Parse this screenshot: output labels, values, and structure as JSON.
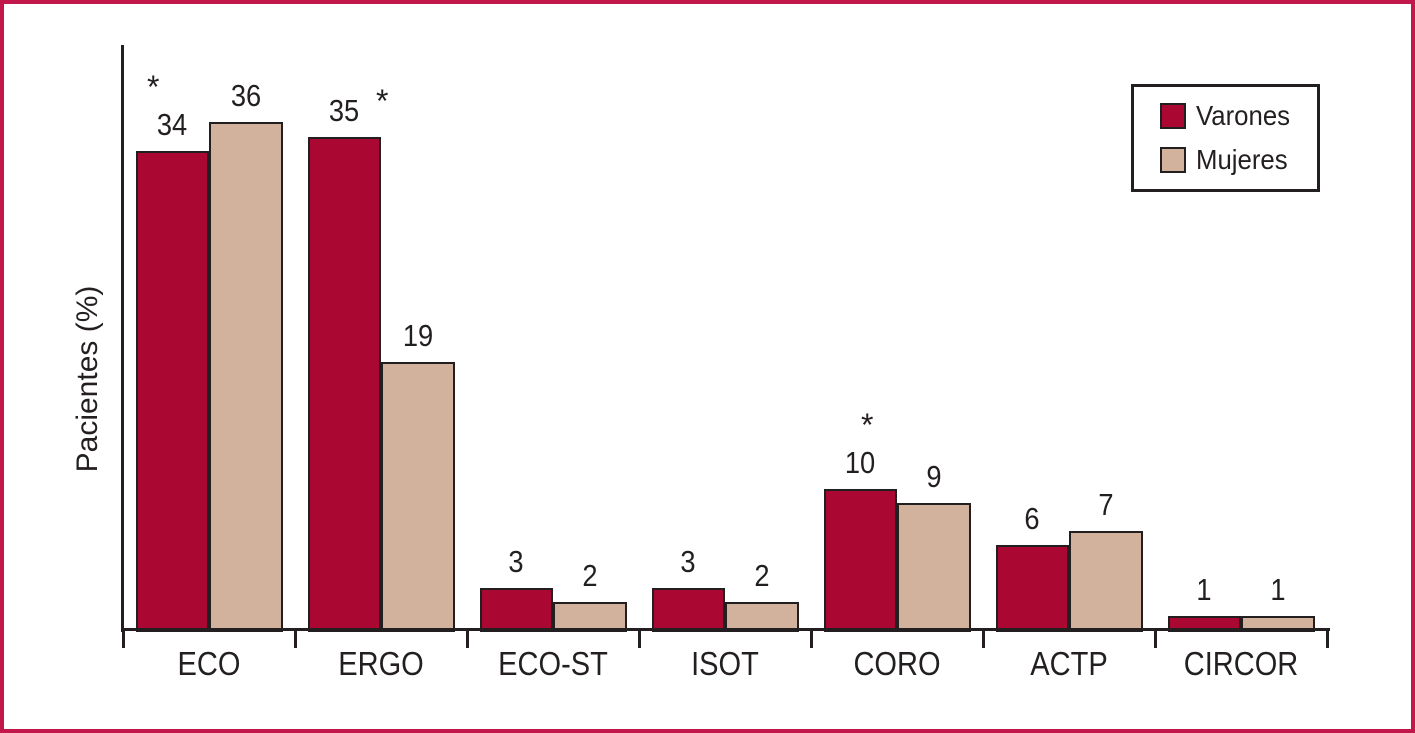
{
  "figure": {
    "background": "#FFFFFF",
    "border_color": "#C2174B",
    "line_color": "#231F20"
  },
  "chart_data": {
    "type": "bar",
    "ylabel": "Pacientes (%)",
    "categories": [
      "ECO",
      "ERGO",
      "ECO-ST",
      "ISOT",
      "CORO",
      "ACTP",
      "CIRCOR"
    ],
    "series": [
      {
        "name": "Varones",
        "color": "#AA0733",
        "values": [
          34,
          35,
          3,
          3,
          10,
          6,
          1
        ]
      },
      {
        "name": "Mujeres",
        "color": "#D2B29C",
        "values": [
          36,
          19,
          2,
          2,
          9,
          7,
          1
        ]
      }
    ],
    "bar_value_labels": [
      [
        "34",
        "35",
        "3",
        "3",
        "10",
        "6",
        "1"
      ],
      [
        "36",
        "19",
        "2",
        "2",
        "9",
        "7",
        "1"
      ]
    ],
    "annotations": [
      {
        "category": "ECO",
        "series": "Varones",
        "text": "*",
        "placement": "above-left"
      },
      {
        "category": "ERGO",
        "series": "Varones",
        "text": "*",
        "placement": "upper-right"
      },
      {
        "category": "CORO",
        "series": "Varones",
        "text": "*",
        "placement": "above"
      }
    ],
    "ylim": [
      0,
      40
    ],
    "grid": false,
    "y_tick_labels": [],
    "legend_position": "top-right"
  }
}
